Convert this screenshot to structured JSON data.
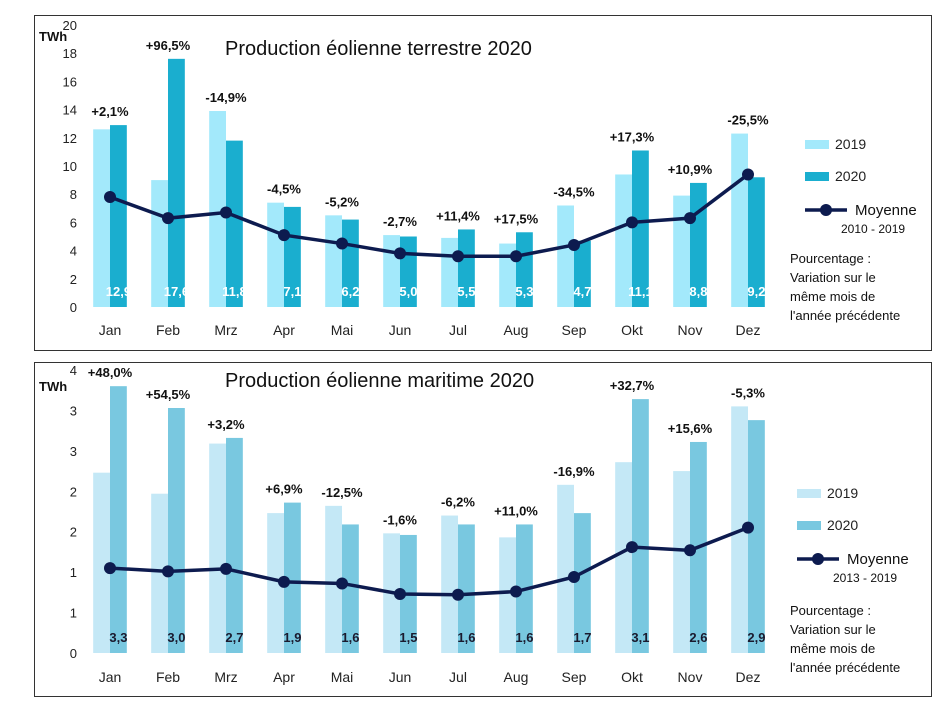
{
  "chart_data": [
    {
      "type": "bar",
      "title": "Production éolienne terrestre 2020",
      "ylabel": "TWh",
      "ylim": [
        0,
        20
      ],
      "yticks": [
        "0",
        "2",
        "4",
        "6",
        "8",
        "10",
        "12",
        "14",
        "16",
        "18",
        "20"
      ],
      "categories": [
        "Jan",
        "Feb",
        "Mrz",
        "Apr",
        "Mai",
        "Jun",
        "Jul",
        "Aug",
        "Sep",
        "Okt",
        "Nov",
        "Dez"
      ],
      "series": [
        {
          "name": "2019",
          "values": [
            12.6,
            9.0,
            13.9,
            7.4,
            6.5,
            5.1,
            4.9,
            4.5,
            7.2,
            9.4,
            7.9,
            12.3
          ]
        },
        {
          "name": "2020",
          "values": [
            12.9,
            17.6,
            11.8,
            7.1,
            6.2,
            5.0,
            5.5,
            5.3,
            4.7,
            11.1,
            8.8,
            9.2
          ]
        },
        {
          "name": "Moyenne",
          "values": [
            7.8,
            6.3,
            6.7,
            5.1,
            4.5,
            3.8,
            3.6,
            3.6,
            4.4,
            6.0,
            6.3,
            9.4
          ]
        }
      ],
      "value_labels": [
        "12,9",
        "17,6",
        "11,8",
        "7,1",
        "6,2",
        "5,0",
        "5,5",
        "5,3",
        "4,7",
        "11,1",
        "8,8",
        "9,2"
      ],
      "pct_labels": [
        "+2,1%",
        "+96,5%",
        "-14,9%",
        "-4,5%",
        "-5,2%",
        "-2,7%",
        "+11,4%",
        "+17,5%",
        "-34,5%",
        "+17,3%",
        "+10,9%",
        "-25,5%"
      ],
      "legend": {
        "a": "2019",
        "b": "2020",
        "avg": "Moyenne",
        "avg_period": "2010 - 2019"
      },
      "note": [
        "Pourcentage :",
        "Variation sur le",
        "même mois de",
        "l'année précédente"
      ],
      "colors": {
        "a": "#a3e9fb",
        "b": "#1aaecf",
        "line": "#0d1b4f"
      }
    },
    {
      "type": "bar",
      "title": "Production éolienne maritime 2020",
      "ylabel": "TWh",
      "ylim": [
        0,
        3.5
      ],
      "yticks": [
        "0",
        "1",
        "1",
        "2",
        "2",
        "3",
        "3",
        "4"
      ],
      "categories": [
        "Jan",
        "Feb",
        "Mrz",
        "Apr",
        "Mai",
        "Jun",
        "Jul",
        "Aug",
        "Sep",
        "Okt",
        "Nov",
        "Dez"
      ],
      "series": [
        {
          "name": "2019",
          "values": [
            2.23,
            1.97,
            2.59,
            1.73,
            1.82,
            1.48,
            1.7,
            1.43,
            2.08,
            2.36,
            2.25,
            3.05
          ]
        },
        {
          "name": "2020",
          "values": [
            3.3,
            3.03,
            2.66,
            1.86,
            1.59,
            1.46,
            1.59,
            1.59,
            1.73,
            3.14,
            2.61,
            2.88
          ]
        },
        {
          "name": "Moyenne",
          "values": [
            1.05,
            1.01,
            1.04,
            0.88,
            0.86,
            0.73,
            0.72,
            0.76,
            0.94,
            1.31,
            1.27,
            1.55
          ]
        }
      ],
      "value_labels": [
        "3,3",
        "3,0",
        "2,7",
        "1,9",
        "1,6",
        "1,5",
        "1,6",
        "1,6",
        "1,7",
        "3,1",
        "2,6",
        "2,9"
      ],
      "pct_labels": [
        "+48,0%",
        "+54,5%",
        "+3,2%",
        "+6,9%",
        "-12,5%",
        "-1,6%",
        "-6,2%",
        "+11,0%",
        "-16,9%",
        "+32,7%",
        "+15,6%",
        "-5,3%"
      ],
      "legend": {
        "a": "2019",
        "b": "2020",
        "avg": "Moyenne",
        "avg_period": "2013 - 2019"
      },
      "note": [
        "Pourcentage :",
        "Variation sur le",
        "même mois de",
        "l'année précédente"
      ],
      "colors": {
        "a": "#c4e8f6",
        "b": "#79c8e0",
        "line": "#0d1b4f"
      }
    }
  ]
}
